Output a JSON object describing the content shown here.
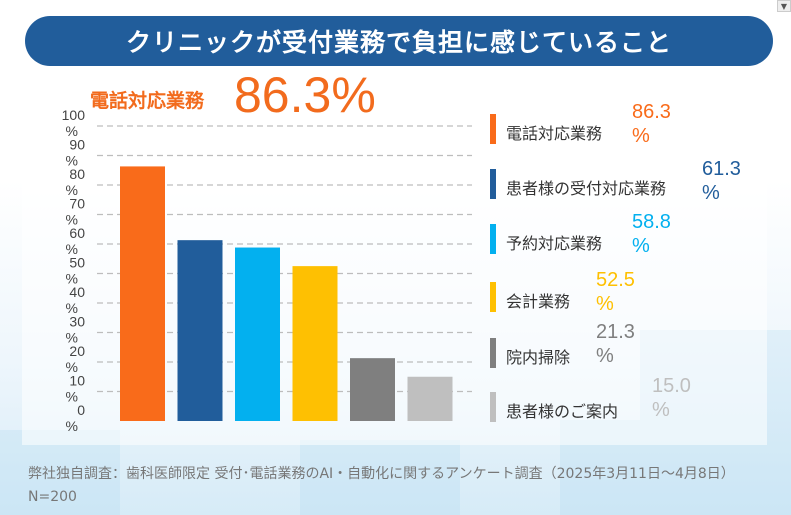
{
  "title": "クリニックが受付業務で負担に感じていること",
  "headline": {
    "label": "電話対応業務",
    "value": "86.3%"
  },
  "footnote": "弊社独自調査：歯科医師限定 受付･電話業務のAI・自動化に関するアンケート調査（2025年3月11日〜4月8日）N=200",
  "chart_data": {
    "type": "bar",
    "title": "クリニックが受付業務で負担に感じていること",
    "xlabel": "",
    "ylabel": "",
    "ylim": [
      0,
      100
    ],
    "yticks": [
      0,
      10,
      20,
      30,
      40,
      50,
      60,
      70,
      80,
      90,
      100
    ],
    "ytick_labels": [
      "0\n%",
      "10\n%",
      "20\n%",
      "30\n%",
      "40\n%",
      "50\n%",
      "60\n%",
      "70\n%",
      "80\n%",
      "90\n%",
      "100\n%"
    ],
    "grid": true,
    "legend_position": "right",
    "categories": [
      "電話対応業務",
      "患者様の受付対応業務",
      "予約対応業務",
      "会計業務",
      "院内掃除",
      "患者様のご案内"
    ],
    "values": [
      86.3,
      61.3,
      58.8,
      52.5,
      21.3,
      15.0
    ],
    "value_labels": [
      "86.3%",
      "61.3%",
      "58.8%",
      "52.5%",
      "21.3%",
      "15.0%"
    ],
    "colors": [
      "#f96b1a",
      "#215d9b",
      "#03b0ef",
      "#fec002",
      "#7f7f7f",
      "#bfbfbf"
    ]
  },
  "legend": [
    {
      "label": "電話対応業務",
      "value_num": "86.3",
      "value_unit": "%",
      "color": "#f96b1a"
    },
    {
      "label": "患者様の受付対応業務",
      "value_num": "61.3",
      "value_unit": "%",
      "color": "#215d9b"
    },
    {
      "label": "予約対応業務",
      "value_num": "58.8",
      "value_unit": "%",
      "color": "#03b0ef"
    },
    {
      "label": "会計業務",
      "value_num": "52.5",
      "value_unit": "%",
      "color": "#fec002"
    },
    {
      "label": "院内掃除",
      "value_num": "21.3",
      "value_unit": "%",
      "color": "#7f7f7f"
    },
    {
      "label": "患者様のご案内",
      "value_num": "15.0",
      "value_unit": "%",
      "color": "#bfbfbf"
    }
  ],
  "scroll_arrow": "▼"
}
